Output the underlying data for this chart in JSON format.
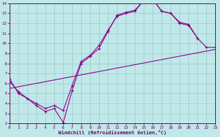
{
  "bg_color": "#c0e8e8",
  "grid_color": "#98c8c8",
  "line_color": "#880088",
  "xlabel": "Windchill (Refroidissement éolien,°C)",
  "xlim": [
    0,
    23
  ],
  "ylim": [
    2,
    14
  ],
  "xticks": [
    0,
    1,
    2,
    3,
    4,
    5,
    6,
    7,
    8,
    9,
    10,
    11,
    12,
    13,
    14,
    15,
    16,
    17,
    18,
    19,
    20,
    21,
    22,
    23
  ],
  "yticks": [
    2,
    3,
    4,
    5,
    6,
    7,
    8,
    9,
    10,
    11,
    12,
    13,
    14
  ],
  "line1_x": [
    0,
    1,
    2,
    3,
    4,
    5,
    6,
    7,
    8,
    9,
    10,
    11,
    12,
    13,
    14,
    15,
    16,
    17,
    18,
    19,
    20,
    21
  ],
  "line1_y": [
    6.5,
    5.0,
    4.5,
    3.8,
    3.2,
    3.5,
    2.1,
    5.3,
    8.0,
    8.7,
    9.5,
    11.2,
    12.8,
    13.1,
    13.3,
    14.3,
    14.4,
    13.2,
    13.0,
    12.0,
    11.8,
    10.5
  ],
  "line2_x": [
    0,
    1,
    2,
    3,
    4,
    5,
    6,
    7,
    8,
    9,
    10,
    11,
    12,
    13,
    14,
    15,
    16,
    17,
    18,
    19,
    20,
    21,
    22,
    23
  ],
  "line2_y": [
    6.2,
    5.2,
    4.5,
    4.0,
    3.5,
    3.8,
    3.3,
    5.8,
    8.2,
    8.8,
    9.8,
    11.3,
    12.7,
    13.0,
    13.2,
    14.3,
    14.4,
    13.2,
    13.0,
    12.1,
    11.9,
    10.5,
    9.6,
    9.6
  ],
  "line3_x": [
    0,
    23
  ],
  "line3_y": [
    5.5,
    9.4
  ]
}
